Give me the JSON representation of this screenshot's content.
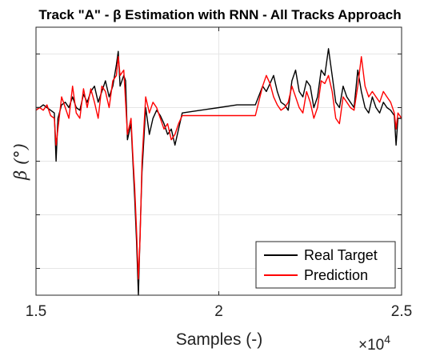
{
  "chart_data": {
    "type": "line",
    "title": "Track \"A\" - β Estimation with RNN - All Tracks Approach",
    "xlabel": "Samples (-)",
    "ylabel": "β (°)",
    "x_exponent_label": "×10",
    "x_exponent_power": "4",
    "xlim": [
      1.5,
      2.5
    ],
    "ylim": [
      -2,
      3
    ],
    "xticks": [
      1.5,
      2,
      2.5
    ],
    "xtick_labels": [
      "1.5",
      "2",
      "2.5"
    ],
    "yticks": [
      -1.5,
      -0.5,
      0.5,
      1.5,
      2.5
    ],
    "grid": true,
    "legend_position": "bottom-right",
    "series": [
      {
        "name": "Real Target",
        "color": "#000000",
        "x": [
          1.5,
          1.51,
          1.52,
          1.53,
          1.54,
          1.55,
          1.555,
          1.56,
          1.57,
          1.58,
          1.59,
          1.6,
          1.61,
          1.62,
          1.63,
          1.64,
          1.65,
          1.66,
          1.67,
          1.68,
          1.69,
          1.7,
          1.71,
          1.72,
          1.725,
          1.73,
          1.74,
          1.745,
          1.75,
          1.76,
          1.765,
          1.77,
          1.775,
          1.78,
          1.785,
          1.79,
          1.8,
          1.81,
          1.82,
          1.83,
          1.84,
          1.85,
          1.86,
          1.87,
          1.88,
          1.89,
          1.9,
          1.95,
          2.0,
          2.05,
          2.1,
          2.12,
          2.13,
          2.14,
          2.15,
          2.16,
          2.17,
          2.18,
          2.19,
          2.2,
          2.21,
          2.22,
          2.23,
          2.24,
          2.25,
          2.26,
          2.27,
          2.28,
          2.29,
          2.3,
          2.31,
          2.32,
          2.33,
          2.34,
          2.35,
          2.36,
          2.37,
          2.38,
          2.39,
          2.4,
          2.41,
          2.42,
          2.43,
          2.44,
          2.45,
          2.46,
          2.47,
          2.48,
          2.485,
          2.49,
          2.5
        ],
        "y": [
          1.5,
          1.5,
          1.55,
          1.5,
          1.45,
          1.4,
          0.5,
          1.3,
          1.55,
          1.6,
          1.5,
          1.7,
          1.5,
          1.45,
          1.75,
          1.6,
          1.8,
          1.9,
          1.6,
          1.8,
          2.0,
          1.7,
          1.9,
          2.3,
          2.55,
          1.9,
          2.1,
          2.0,
          0.9,
          1.2,
          0.5,
          -0.2,
          -1.0,
          -2.0,
          -0.8,
          0.3,
          1.5,
          1.0,
          1.3,
          1.45,
          1.35,
          1.2,
          1.0,
          1.1,
          0.8,
          1.1,
          1.4,
          1.45,
          1.5,
          1.55,
          1.55,
          1.9,
          1.8,
          1.95,
          2.1,
          1.8,
          1.6,
          1.55,
          1.45,
          2.0,
          2.2,
          1.8,
          1.7,
          2.0,
          1.9,
          1.5,
          1.7,
          2.2,
          2.1,
          2.6,
          2.1,
          1.6,
          1.5,
          1.9,
          1.7,
          1.6,
          1.5,
          2.2,
          1.8,
          1.5,
          1.4,
          1.7,
          1.5,
          1.4,
          1.6,
          1.5,
          1.45,
          1.35,
          0.8,
          1.3,
          1.3
        ]
      },
      {
        "name": "Prediction",
        "color": "#ff0000",
        "x": [
          1.5,
          1.51,
          1.52,
          1.53,
          1.54,
          1.55,
          1.555,
          1.56,
          1.57,
          1.58,
          1.59,
          1.6,
          1.61,
          1.62,
          1.63,
          1.64,
          1.65,
          1.66,
          1.67,
          1.68,
          1.69,
          1.7,
          1.71,
          1.72,
          1.725,
          1.73,
          1.74,
          1.745,
          1.75,
          1.76,
          1.765,
          1.77,
          1.775,
          1.78,
          1.785,
          1.79,
          1.8,
          1.81,
          1.82,
          1.83,
          1.84,
          1.85,
          1.86,
          1.87,
          1.88,
          1.89,
          1.9,
          1.95,
          2.0,
          2.05,
          2.1,
          2.12,
          2.13,
          2.14,
          2.15,
          2.16,
          2.17,
          2.18,
          2.19,
          2.2,
          2.21,
          2.22,
          2.23,
          2.24,
          2.25,
          2.26,
          2.27,
          2.28,
          2.29,
          2.3,
          2.31,
          2.32,
          2.33,
          2.34,
          2.35,
          2.36,
          2.37,
          2.38,
          2.39,
          2.4,
          2.41,
          2.42,
          2.43,
          2.44,
          2.45,
          2.46,
          2.47,
          2.48,
          2.485,
          2.49,
          2.5
        ],
        "y": [
          1.45,
          1.5,
          1.45,
          1.55,
          1.35,
          1.3,
          0.8,
          1.1,
          1.7,
          1.5,
          1.3,
          1.9,
          1.4,
          1.3,
          1.85,
          1.5,
          1.85,
          1.6,
          1.3,
          1.9,
          1.8,
          1.5,
          2.0,
          2.1,
          2.45,
          2.1,
          2.2,
          1.6,
          1.0,
          1.3,
          0.6,
          0.0,
          -0.8,
          -1.7,
          -0.9,
          0.5,
          1.7,
          1.4,
          1.6,
          1.5,
          1.3,
          1.1,
          1.2,
          0.9,
          1.0,
          1.2,
          1.35,
          1.35,
          1.35,
          1.35,
          1.35,
          1.9,
          2.1,
          1.95,
          1.7,
          1.55,
          1.45,
          1.5,
          1.6,
          1.9,
          1.7,
          1.5,
          1.4,
          1.8,
          1.6,
          1.3,
          1.5,
          2.0,
          1.95,
          2.1,
          1.8,
          1.3,
          1.2,
          1.7,
          1.6,
          1.5,
          1.45,
          1.9,
          2.45,
          1.9,
          1.7,
          1.8,
          1.7,
          1.6,
          1.8,
          1.7,
          1.6,
          1.4,
          1.1,
          1.4,
          1.3
        ]
      }
    ]
  }
}
